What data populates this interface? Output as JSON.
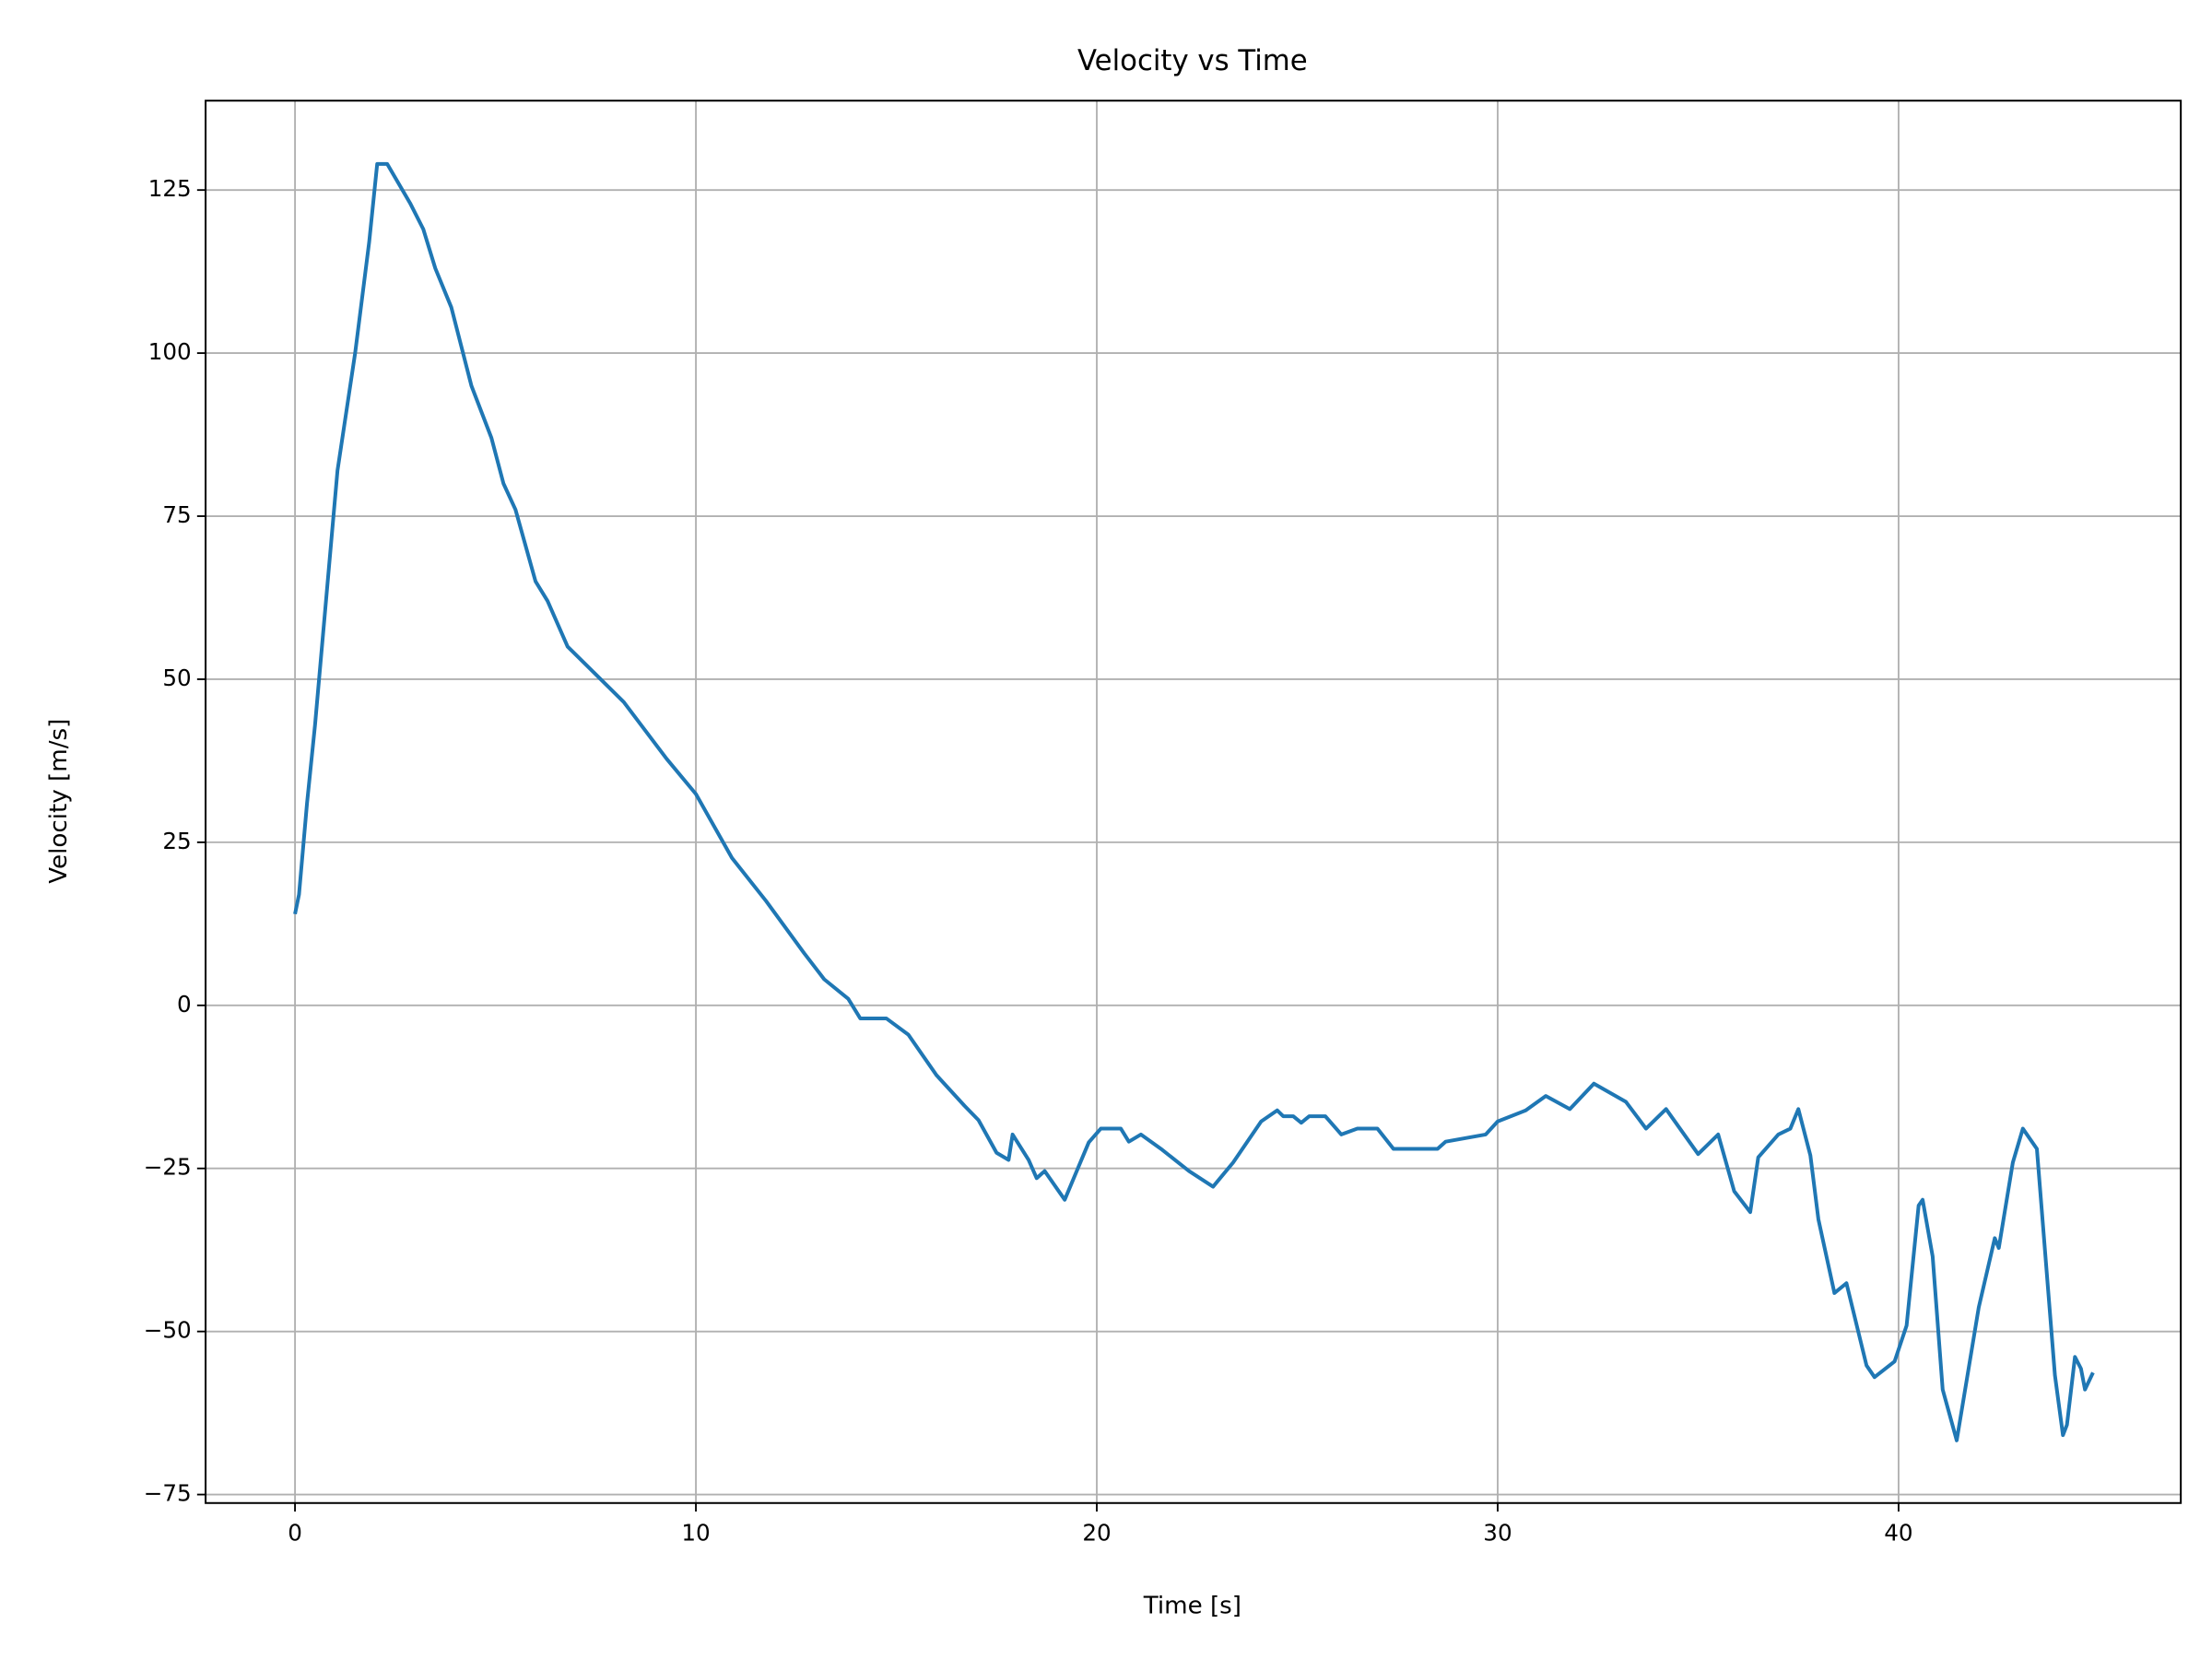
{
  "chart_data": {
    "type": "line",
    "title": "Velocity vs Time",
    "x_label": "Time [s]",
    "y_label": "Velocity [m/s]",
    "color": "#1f77b4",
    "grid": true,
    "xlim": [
      -2.23,
      47.04
    ],
    "ylim": [
      -76.3,
      138.7
    ],
    "xticks": [
      0,
      10,
      20,
      30,
      40
    ],
    "yticks": [
      {
        "value": -75,
        "label": "−75"
      },
      {
        "value": -50,
        "label": "−50"
      },
      {
        "value": -25,
        "label": "−25"
      },
      0,
      25,
      50,
      75,
      100,
      125
    ],
    "x": [
      0,
      0.1,
      0.3,
      0.5,
      1.06,
      1.5,
      1.85,
      2.05,
      2.3,
      2.87,
      3.2,
      3.5,
      3.9,
      4.4,
      4.9,
      5.2,
      5.5,
      6.0,
      6.3,
      6.8,
      8.2,
      9.27,
      10.0,
      10.9,
      11.75,
      12.7,
      13.2,
      13.8,
      14.1,
      14.75,
      15.3,
      16.0,
      16.7,
      17.05,
      17.5,
      17.8,
      17.9,
      18.3,
      18.5,
      18.7,
      19.2,
      19.8,
      20.1,
      20.6,
      20.8,
      21.1,
      21.6,
      22.3,
      22.9,
      23.4,
      24.1,
      24.5,
      24.65,
      24.9,
      25.1,
      25.3,
      25.7,
      26.1,
      26.5,
      27.0,
      27.4,
      28.5,
      28.7,
      29.7,
      30.0,
      30.7,
      31.2,
      31.8,
      32.4,
      33.2,
      33.7,
      34.2,
      35.0,
      35.5,
      35.9,
      36.3,
      36.5,
      37.0,
      37.3,
      37.5,
      37.8,
      38.0,
      38.4,
      38.7,
      39.2,
      39.4,
      39.9,
      40.2,
      40.5,
      40.6,
      40.85,
      41.1,
      41.45,
      42.0,
      42.4,
      42.5,
      42.85,
      43.1,
      43.45,
      43.9,
      44.1,
      44.2,
      44.4,
      44.55,
      44.65,
      44.85
    ],
    "values": [
      14,
      17,
      31,
      43,
      82,
      100,
      117,
      129,
      129,
      123,
      119,
      113,
      107,
      95,
      87,
      80,
      76,
      65,
      62,
      55,
      46.5,
      37.8,
      32.4,
      22.6,
      16,
      8,
      4,
      1,
      -2,
      -2,
      -4.5,
      -10.7,
      -15.4,
      -17.6,
      -22.6,
      -23.7,
      -19.8,
      -23.7,
      -26.5,
      -25.4,
      -29.8,
      -21,
      -18.9,
      -18.9,
      -20.9,
      -19.8,
      -22,
      -25.4,
      -27.8,
      -24.1,
      -17.8,
      -16.1,
      -17,
      -17,
      -18,
      -17,
      -17,
      -19.8,
      -18.9,
      -18.9,
      -22,
      -22,
      -20.9,
      -19.8,
      -17.8,
      -16.1,
      -13.9,
      -15.9,
      -12,
      -14.8,
      -18.9,
      -15.9,
      -22.8,
      -19.8,
      -28.5,
      -31.7,
      -23.3,
      -19.8,
      -18.9,
      -15.9,
      -23,
      -32.8,
      -44.1,
      -42.6,
      -55.2,
      -57,
      -54.6,
      -49.1,
      -30.7,
      -29.8,
      -38.5,
      -58.9,
      -66.7,
      -46.3,
      -35.7,
      -37.2,
      -24.1,
      -18.9,
      -22,
      -56.7,
      -65.9,
      -64.3,
      -53.9,
      -55.7,
      -58.9,
      -56.3
    ]
  }
}
